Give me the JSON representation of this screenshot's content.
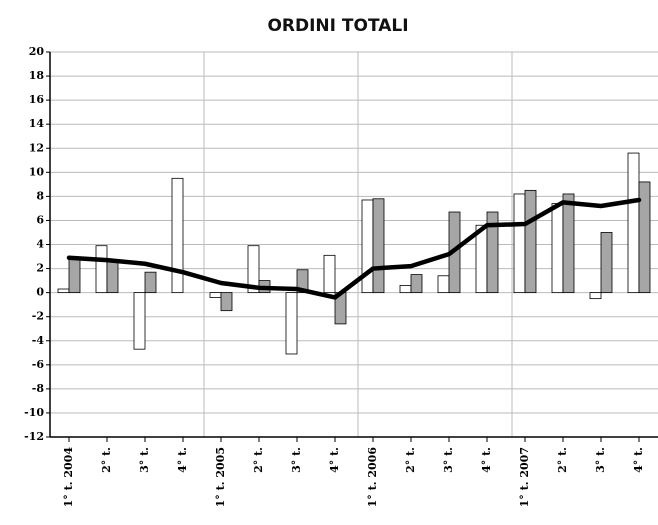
{
  "chart_data": {
    "type": "bar",
    "title": "ORDINI TOTALI",
    "categories": [
      "1° t. 2004",
      "2° t.",
      "3° t.",
      "4° t.",
      "1° t. 2005",
      "2° t.",
      "3° t.",
      "4° t.",
      "1° t. 2006",
      "2° t.",
      "3° t.",
      "4° t.",
      "1° t. 2007",
      "2° t.",
      "3° t.",
      "4° t."
    ],
    "series": [
      {
        "type": "bar",
        "color": "#ffffff",
        "values": [
          0.3,
          3.9,
          -4.7,
          9.5,
          -0.4,
          3.9,
          -5.1,
          3.1,
          7.7,
          0.6,
          1.4,
          5.6,
          8.2,
          7.4,
          -0.5,
          11.6
        ]
      },
      {
        "type": "bar",
        "color": "#a6a6a6",
        "values": [
          2.8,
          2.7,
          1.7,
          0,
          -1.5,
          1.0,
          1.9,
          -2.6,
          7.8,
          1.5,
          6.7,
          6.7,
          8.5,
          8.2,
          5.0,
          9.2
        ]
      },
      {
        "type": "line",
        "color": "#000000",
        "values": [
          2.9,
          2.7,
          2.4,
          1.7,
          0.8,
          0.4,
          0.3,
          -0.4,
          2.0,
          2.2,
          3.2,
          5.6,
          5.7,
          7.5,
          7.2,
          7.7
        ]
      }
    ],
    "ylim": [
      -12,
      20
    ],
    "yticks": [
      -12,
      -10,
      -8,
      -6,
      -4,
      -2,
      0,
      2,
      4,
      6,
      8,
      10,
      12,
      14,
      16,
      18,
      20
    ],
    "grid": true
  }
}
